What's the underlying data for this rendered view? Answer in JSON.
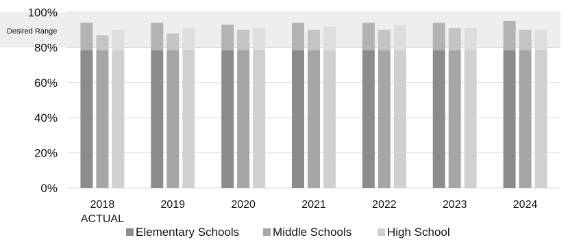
{
  "chart_data": {
    "type": "bar",
    "categories": [
      "2018",
      "2019",
      "2020",
      "2021",
      "2022",
      "2023",
      "2024"
    ],
    "category_sublabels": [
      "ACTUAL",
      "",
      "",
      "",
      "",
      "",
      ""
    ],
    "series": [
      {
        "name": "Elementary Schools",
        "values": [
          94,
          94,
          93,
          94,
          94,
          94,
          95
        ],
        "color": "#8c8c8c",
        "upper_color": "#b3b3b3"
      },
      {
        "name": "Middle Schools",
        "values": [
          87,
          88,
          90,
          90,
          90,
          91,
          90
        ],
        "color": "#a6a6a6",
        "upper_color": "#c4c4c4"
      },
      {
        "name": "High School",
        "values": [
          90,
          91,
          91,
          92,
          93,
          91,
          90
        ],
        "color": "#d0d0d0",
        "upper_color": "#dedede"
      }
    ],
    "ylim": [
      0,
      100
    ],
    "yticks": [
      "0%",
      "20%",
      "40%",
      "60%",
      "80%",
      "100%"
    ],
    "ytick_values": [
      0,
      20,
      40,
      60,
      80,
      100
    ],
    "desired_range": {
      "label": "Desired Range",
      "from": 80,
      "to": 100,
      "color": "#eeeeee"
    },
    "grid": true,
    "legend_position": "bottom",
    "title": "",
    "xlabel": "",
    "ylabel": ""
  }
}
